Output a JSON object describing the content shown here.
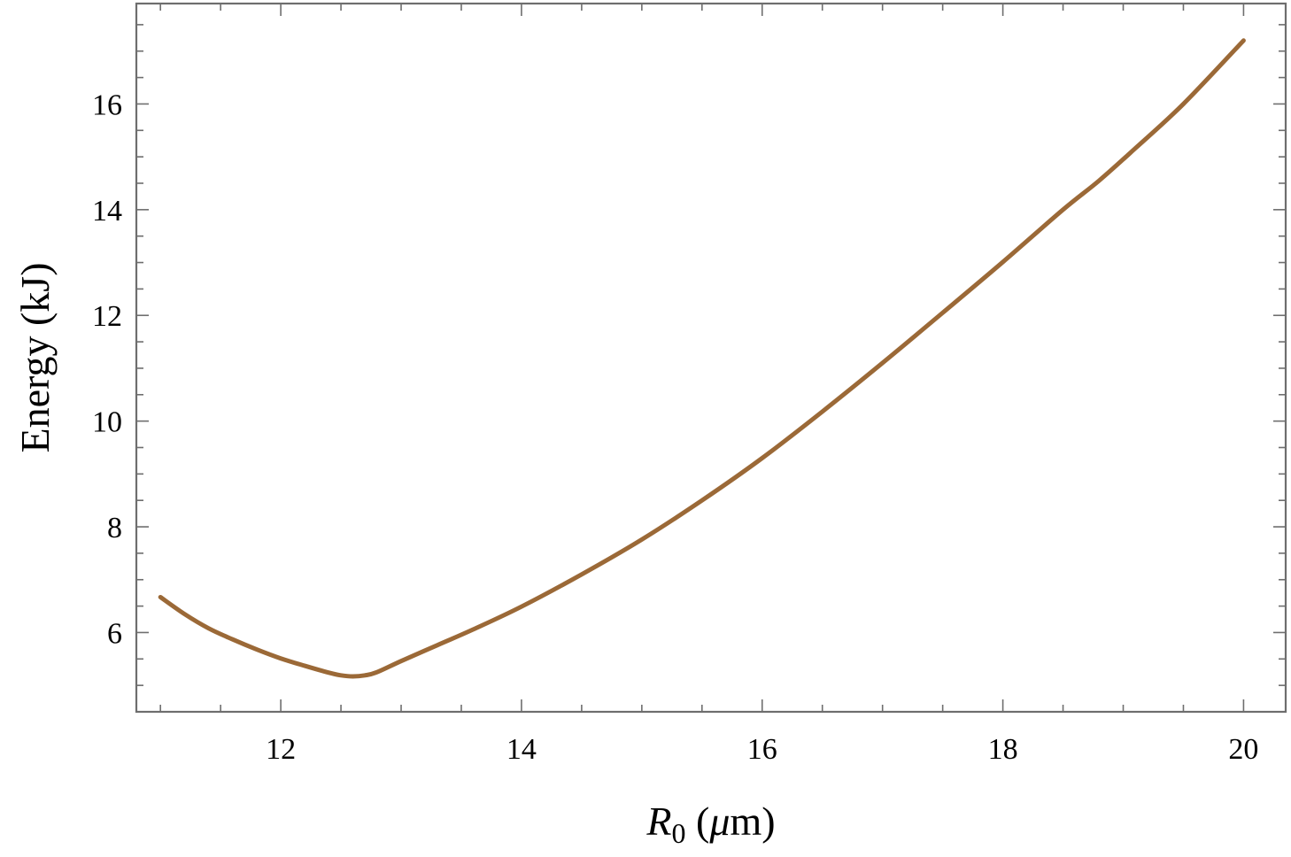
{
  "chart_data": {
    "type": "line",
    "xlabel": {
      "var": "R",
      "sub": "0",
      "unit_open": " (",
      "mu": "μ",
      "unit_rest": "m)"
    },
    "ylabel": "Energy (kJ)",
    "xlim": [
      10.8,
      20.35
    ],
    "ylim": [
      4.5,
      17.9
    ],
    "xticks": [
      12,
      14,
      16,
      18,
      20
    ],
    "xtick_labels": [
      "12",
      "14",
      "16",
      "18",
      "20"
    ],
    "yticks": [
      6,
      8,
      10,
      12,
      14,
      16
    ],
    "ytick_labels": [
      "6",
      "8",
      "10",
      "12",
      "14",
      "16"
    ],
    "grid": false,
    "series": [
      {
        "color": "#9b6937",
        "x": [
          11.0,
          11.2,
          11.4,
          11.6,
          11.8,
          12.0,
          12.2,
          12.4,
          12.5,
          12.6,
          12.7,
          12.8,
          13.0,
          13.3,
          13.6,
          14.0,
          14.5,
          15.0,
          15.5,
          16.0,
          16.5,
          17.0,
          17.5,
          18.0,
          18.5,
          18.8,
          19.1,
          19.5,
          20.0
        ],
        "y": [
          6.67,
          6.35,
          6.08,
          5.87,
          5.68,
          5.51,
          5.37,
          5.24,
          5.19,
          5.17,
          5.19,
          5.25,
          5.46,
          5.76,
          6.06,
          6.49,
          7.1,
          7.76,
          8.5,
          9.3,
          10.18,
          11.1,
          12.05,
          13.01,
          14.0,
          14.55,
          15.16,
          16.0,
          17.2
        ]
      }
    ]
  }
}
